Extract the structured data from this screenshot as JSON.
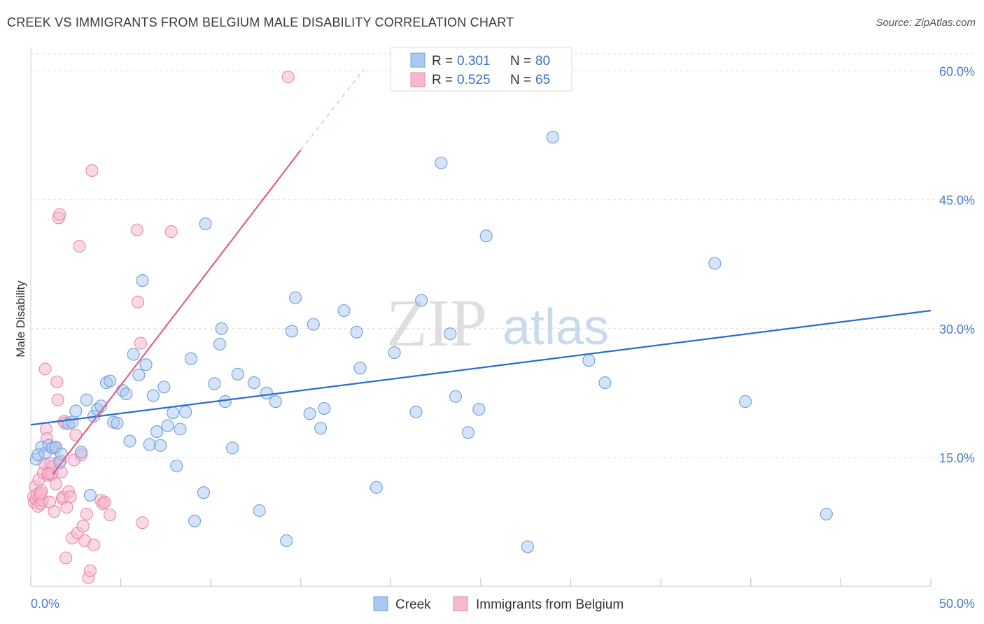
{
  "header": {
    "title": "CREEK VS IMMIGRANTS FROM BELGIUM MALE DISABILITY CORRELATION CHART",
    "source": "Source: ZipAtlas.com"
  },
  "watermark": {
    "zip": "ZIP",
    "atlas": "atlas"
  },
  "colors": {
    "creek_fill": "#aac8f0",
    "creek_stroke": "#6f9fdc",
    "creek_line": "#2a6dcc",
    "belgium_fill": "#f7b9cd",
    "belgium_stroke": "#e88aa8",
    "belgium_line": "#e0608a",
    "tick_text": "#4a7cc7",
    "grid": "#dcdcdc"
  },
  "legend_top": {
    "rows": [
      {
        "r_label": "R = ",
        "r_value": "0.301",
        "n_label": "N = ",
        "n_value": "80"
      },
      {
        "r_label": "R = ",
        "r_value": "0.525",
        "n_label": "N = ",
        "n_value": "65"
      }
    ]
  },
  "legend_bottom": [
    "Creek",
    "Immigrants from Belgium"
  ],
  "chart_data": {
    "type": "scatter",
    "title": "CREEK VS IMMIGRANTS FROM BELGIUM MALE DISABILITY CORRELATION CHART",
    "xlabel": "",
    "ylabel": "Male Disability",
    "xlim": [
      0,
      50
    ],
    "ylim": [
      0,
      62
    ],
    "x_tick_labels": [
      "0.0%",
      "50.0%"
    ],
    "y_ticks": [
      15,
      30,
      45,
      60
    ],
    "y_tick_labels": [
      "15.0%",
      "30.0%",
      "45.0%",
      "60.0%"
    ],
    "grid": true,
    "legend_position": "top-center",
    "series": [
      {
        "name": "Creek",
        "r": 0.301,
        "n": 80,
        "trend": {
          "x": [
            0,
            50
          ],
          "y": [
            18.8,
            32.1
          ]
        },
        "points": [
          [
            0.3,
            14.8
          ],
          [
            0.6,
            16.2
          ],
          [
            0.8,
            15.5
          ],
          [
            1.0,
            16.4
          ],
          [
            1.2,
            16.1
          ],
          [
            1.4,
            16.2
          ],
          [
            1.6,
            14.4
          ],
          [
            1.7,
            15.4
          ],
          [
            2.1,
            18.9
          ],
          [
            2.3,
            19.1
          ],
          [
            2.5,
            20.4
          ],
          [
            2.8,
            15.6
          ],
          [
            3.1,
            21.7
          ],
          [
            3.3,
            10.6
          ],
          [
            3.5,
            19.8
          ],
          [
            3.7,
            20.6
          ],
          [
            3.9,
            21.0
          ],
          [
            4.2,
            23.7
          ],
          [
            4.4,
            23.9
          ],
          [
            4.6,
            19.1
          ],
          [
            4.8,
            19.0
          ],
          [
            5.1,
            22.8
          ],
          [
            5.3,
            22.4
          ],
          [
            5.5,
            16.9
          ],
          [
            5.7,
            27.0
          ],
          [
            6.0,
            24.6
          ],
          [
            6.2,
            35.6
          ],
          [
            6.4,
            25.8
          ],
          [
            6.6,
            16.5
          ],
          [
            6.8,
            22.2
          ],
          [
            7.0,
            18.0
          ],
          [
            7.2,
            16.4
          ],
          [
            7.4,
            23.2
          ],
          [
            7.6,
            18.7
          ],
          [
            7.9,
            20.2
          ],
          [
            8.1,
            14.0
          ],
          [
            8.3,
            18.3
          ],
          [
            8.6,
            20.3
          ],
          [
            8.9,
            26.5
          ],
          [
            9.1,
            7.6
          ],
          [
            9.6,
            10.9
          ],
          [
            9.7,
            42.2
          ],
          [
            10.2,
            23.6
          ],
          [
            10.5,
            28.2
          ],
          [
            10.6,
            30.0
          ],
          [
            10.8,
            21.5
          ],
          [
            11.2,
            16.1
          ],
          [
            11.5,
            24.7
          ],
          [
            12.4,
            23.7
          ],
          [
            12.7,
            8.8
          ],
          [
            13.1,
            22.5
          ],
          [
            13.6,
            21.5
          ],
          [
            14.2,
            5.3
          ],
          [
            14.5,
            29.7
          ],
          [
            14.7,
            33.6
          ],
          [
            15.5,
            20.1
          ],
          [
            15.7,
            30.5
          ],
          [
            16.1,
            18.4
          ],
          [
            16.3,
            20.7
          ],
          [
            17.4,
            32.1
          ],
          [
            18.1,
            29.6
          ],
          [
            18.3,
            25.4
          ],
          [
            19.2,
            11.5
          ],
          [
            20.2,
            27.2
          ],
          [
            21.4,
            20.3
          ],
          [
            21.7,
            33.3
          ],
          [
            22.8,
            49.3
          ],
          [
            23.3,
            29.4
          ],
          [
            23.6,
            22.1
          ],
          [
            24.3,
            17.9
          ],
          [
            24.9,
            20.6
          ],
          [
            25.3,
            40.8
          ],
          [
            27.6,
            4.6
          ],
          [
            29.0,
            52.3
          ],
          [
            31.0,
            26.3
          ],
          [
            31.9,
            23.7
          ],
          [
            38.0,
            37.6
          ],
          [
            39.7,
            21.5
          ],
          [
            44.2,
            8.4
          ],
          [
            0.4,
            15.3
          ]
        ]
      },
      {
        "name": "Immigrants from Belgium",
        "r": 0.525,
        "n": 65,
        "trend": {
          "x": [
            1.2,
            15.0
          ],
          "y": [
            13.0,
            50.8
          ]
        },
        "trend_dashed": {
          "x": [
            15.0,
            18.5
          ],
          "y": [
            50.8,
            60.2
          ]
        },
        "points": [
          [
            0.15,
            10.4
          ],
          [
            0.2,
            9.8
          ],
          [
            0.25,
            11.6
          ],
          [
            0.3,
            10.1
          ],
          [
            0.35,
            10.7
          ],
          [
            0.4,
            9.3
          ],
          [
            0.45,
            12.4
          ],
          [
            0.5,
            10.4
          ],
          [
            0.55,
            9.6
          ],
          [
            0.6,
            11.1
          ],
          [
            0.65,
            10.0
          ],
          [
            0.7,
            13.2
          ],
          [
            0.75,
            14.3
          ],
          [
            0.8,
            25.3
          ],
          [
            0.85,
            18.3
          ],
          [
            0.9,
            17.2
          ],
          [
            0.95,
            12.9
          ],
          [
            1.0,
            13.2
          ],
          [
            1.05,
            9.8
          ],
          [
            1.1,
            14.3
          ],
          [
            1.15,
            13.0
          ],
          [
            1.2,
            13.2
          ],
          [
            1.25,
            14.0
          ],
          [
            1.3,
            8.7
          ],
          [
            1.35,
            16.1
          ],
          [
            1.4,
            11.9
          ],
          [
            1.45,
            23.8
          ],
          [
            1.5,
            21.7
          ],
          [
            1.55,
            42.9
          ],
          [
            1.6,
            43.3
          ],
          [
            1.65,
            14.6
          ],
          [
            1.7,
            13.3
          ],
          [
            1.75,
            10.2
          ],
          [
            1.8,
            10.4
          ],
          [
            1.85,
            19.2
          ],
          [
            1.9,
            19.0
          ],
          [
            1.95,
            3.3
          ],
          [
            2.0,
            9.2
          ],
          [
            2.1,
            11.0
          ],
          [
            2.2,
            10.4
          ],
          [
            2.3,
            5.6
          ],
          [
            2.4,
            14.7
          ],
          [
            2.5,
            17.6
          ],
          [
            2.6,
            6.2
          ],
          [
            2.7,
            39.6
          ],
          [
            2.8,
            15.3
          ],
          [
            2.9,
            7.0
          ],
          [
            3.0,
            5.3
          ],
          [
            3.1,
            8.4
          ],
          [
            3.2,
            1.0
          ],
          [
            3.3,
            1.8
          ],
          [
            3.4,
            48.4
          ],
          [
            3.5,
            4.8
          ],
          [
            3.9,
            10.0
          ],
          [
            4.0,
            9.6
          ],
          [
            4.1,
            9.8
          ],
          [
            4.4,
            8.3
          ],
          [
            5.9,
            41.5
          ],
          [
            5.95,
            33.1
          ],
          [
            6.1,
            28.3
          ],
          [
            6.2,
            7.4
          ],
          [
            7.8,
            41.3
          ],
          [
            14.3,
            59.3
          ],
          [
            0.55,
            10.8
          ],
          [
            1.0,
            13.1
          ]
        ]
      }
    ]
  }
}
